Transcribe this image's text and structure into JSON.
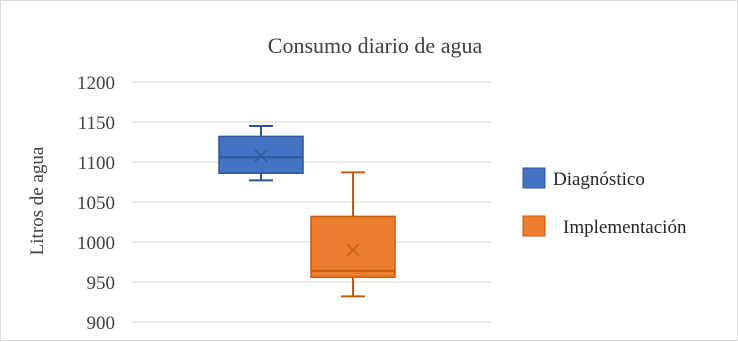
{
  "chart_data": {
    "type": "box",
    "title": "Consumo diario de agua",
    "ylabel": "Litros de agua",
    "xlabel": "",
    "ylim": [
      900,
      1200
    ],
    "yticks": [
      900,
      950,
      1000,
      1050,
      1100,
      1150,
      1200
    ],
    "grid": true,
    "legend_position": "right",
    "series": [
      {
        "name": "Diagnóstico",
        "color": "#4472c4",
        "min": 1077,
        "q1": 1086,
        "median": 1106,
        "q3": 1132,
        "max": 1145,
        "mean": 1108
      },
      {
        "name": "Implementación",
        "color": "#ed7d31",
        "min": 932,
        "q1": 956,
        "median": 964,
        "q3": 1032,
        "max": 1087,
        "mean": 990
      }
    ]
  }
}
